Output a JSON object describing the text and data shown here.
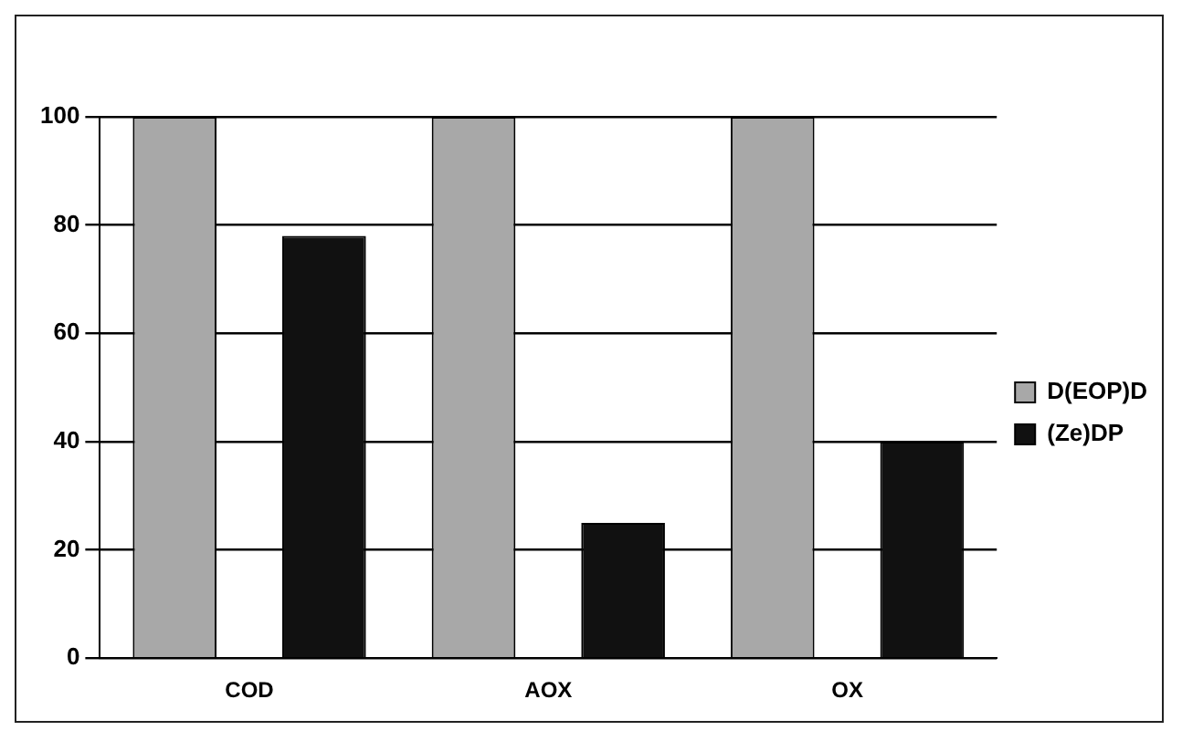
{
  "chart_data": {
    "type": "bar",
    "categories": [
      "COD",
      "AOX",
      "OX"
    ],
    "series": [
      {
        "name": "D(EOP)D",
        "color": "#a8a8a8",
        "values": [
          100,
          100,
          100
        ]
      },
      {
        "name": "(Ze)DP",
        "color": "#111111",
        "values": [
          78,
          25,
          40
        ]
      }
    ],
    "ylim": [
      0,
      100
    ],
    "yticks": [
      0,
      20,
      40,
      60,
      80,
      100
    ],
    "grid": "y",
    "legend": "right"
  }
}
